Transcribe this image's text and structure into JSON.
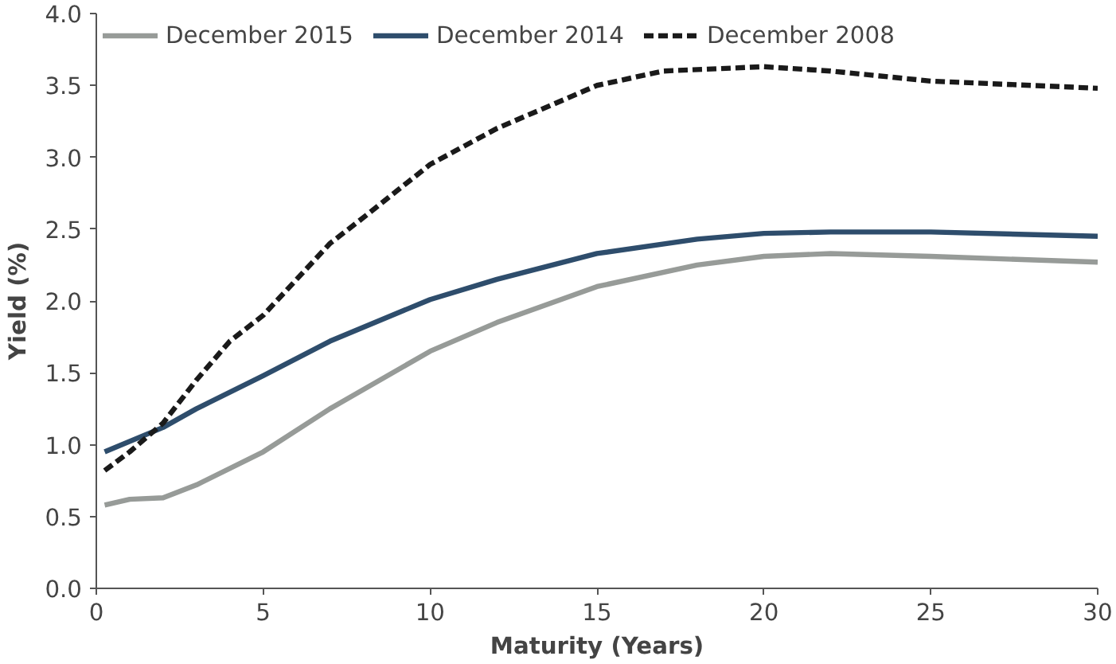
{
  "chart_data": {
    "type": "line",
    "xlabel": "Maturity (Years)",
    "ylabel": "Yield (%)",
    "xlim": [
      0,
      30
    ],
    "ylim": [
      0,
      4
    ],
    "xticks": [
      0,
      5,
      10,
      15,
      20,
      25,
      30
    ],
    "yticks": [
      {
        "value": 0,
        "label": "0.0"
      },
      0.5,
      {
        "value": 1,
        "label": "1.0"
      },
      1.5,
      {
        "value": 2,
        "label": "2.0"
      },
      2.5,
      {
        "value": 3,
        "label": "3.0"
      },
      3.5,
      {
        "value": 4,
        "label": "4.0"
      }
    ],
    "grid": false,
    "legend": "top left",
    "series": [
      {
        "name": "December 2015",
        "color": "#979b98",
        "line_style": "solid",
        "x": [
          0.25,
          1,
          2,
          3,
          5,
          7,
          10,
          12,
          15,
          18,
          20,
          22,
          25,
          30
        ],
        "values": [
          0.58,
          0.62,
          0.63,
          0.72,
          0.95,
          1.25,
          1.65,
          1.85,
          2.1,
          2.25,
          2.31,
          2.33,
          2.31,
          2.27
        ]
      },
      {
        "name": "December 2014",
        "color": "#2e4d6c",
        "line_style": "solid",
        "x": [
          0.25,
          2,
          3,
          5,
          7,
          10,
          12,
          15,
          18,
          20,
          22,
          25,
          30
        ],
        "values": [
          0.95,
          1.12,
          1.25,
          1.48,
          1.72,
          2.01,
          2.15,
          2.33,
          2.43,
          2.47,
          2.48,
          2.48,
          2.45
        ]
      },
      {
        "name": "December 2008",
        "color": "#1a1a1a",
        "line_style": "dashed",
        "x": [
          0.25,
          1,
          2,
          3,
          4,
          5,
          7,
          8,
          10,
          12,
          15,
          17,
          20,
          22,
          25,
          30
        ],
        "values": [
          0.82,
          0.95,
          1.15,
          1.45,
          1.72,
          1.9,
          2.4,
          2.58,
          2.95,
          3.2,
          3.5,
          3.6,
          3.63,
          3.6,
          3.53,
          3.48
        ]
      }
    ]
  }
}
